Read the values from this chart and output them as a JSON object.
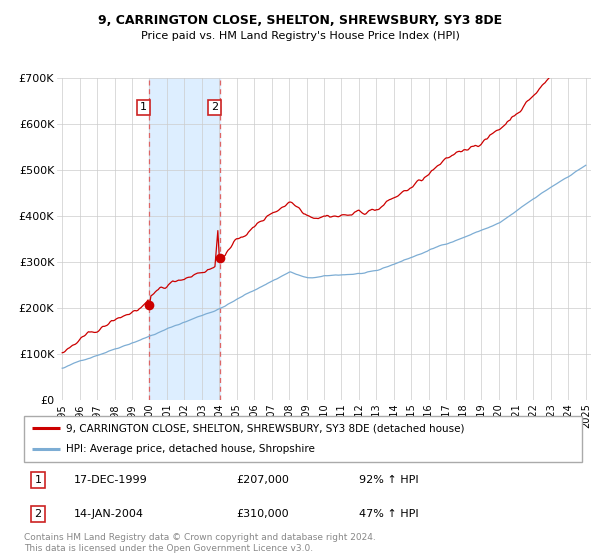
{
  "title": "9, CARRINGTON CLOSE, SHELTON, SHREWSBURY, SY3 8DE",
  "subtitle": "Price paid vs. HM Land Registry's House Price Index (HPI)",
  "legend_line1": "9, CARRINGTON CLOSE, SHELTON, SHREWSBURY, SY3 8DE (detached house)",
  "legend_line2": "HPI: Average price, detached house, Shropshire",
  "footnote": "Contains HM Land Registry data © Crown copyright and database right 2024.\nThis data is licensed under the Open Government Licence v3.0.",
  "transaction1_date": "17-DEC-1999",
  "transaction1_price": "£207,000",
  "transaction1_hpi": "92% ↑ HPI",
  "transaction2_date": "14-JAN-2004",
  "transaction2_price": "£310,000",
  "transaction2_hpi": "47% ↑ HPI",
  "price_color": "#cc0000",
  "hpi_color": "#7dadd4",
  "shade_color": "#ddeeff",
  "ylim": [
    0,
    700000
  ],
  "yticks": [
    0,
    100000,
    200000,
    300000,
    400000,
    500000,
    600000,
    700000
  ],
  "ytick_labels": [
    "£0",
    "£100K",
    "£200K",
    "£300K",
    "£400K",
    "£500K",
    "£600K",
    "£700K"
  ],
  "transaction1_x": 1999.96,
  "transaction1_y": 207000,
  "transaction2_x": 2004.04,
  "transaction2_y": 310000,
  "vline1_x": 1999.96,
  "vline2_x": 2004.04,
  "xlim_left": 1994.7,
  "xlim_right": 2025.3,
  "xtick_years": [
    1995,
    1996,
    1997,
    1998,
    1999,
    2000,
    2001,
    2002,
    2003,
    2004,
    2005,
    2006,
    2007,
    2008,
    2009,
    2010,
    2011,
    2012,
    2013,
    2014,
    2015,
    2016,
    2017,
    2018,
    2019,
    2020,
    2021,
    2022,
    2023,
    2024,
    2025
  ]
}
